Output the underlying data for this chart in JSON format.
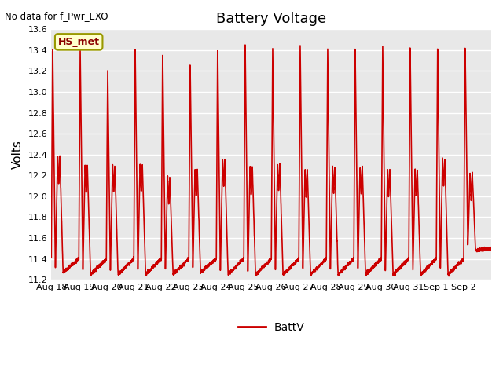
{
  "title": "Battery Voltage",
  "no_data_text": "No data for f_Pwr_EXO",
  "ylabel": "Volts",
  "ylim": [
    11.2,
    13.6
  ],
  "yticks": [
    11.2,
    11.4,
    11.6,
    11.8,
    12.0,
    12.2,
    12.4,
    12.6,
    12.8,
    13.0,
    13.2,
    13.4,
    13.6
  ],
  "line_color": "#cc0000",
  "line_width": 1.2,
  "legend_label": "BattV",
  "hs_met_label": "HS_met",
  "plot_bg_color": "#e8e8e8",
  "fig_bg_color": "#ffffff",
  "grid_color": "#ffffff",
  "x_labels": [
    "Aug 18",
    "Aug 19",
    "Aug 20",
    "Aug 21",
    "Aug 22",
    "Aug 23",
    "Aug 24",
    "Aug 25",
    "Aug 26",
    "Aug 27",
    "Aug 28",
    "Aug 29",
    "Aug 30",
    "Aug 31",
    "Sep 1",
    "Sep 2"
  ],
  "n_days": 16,
  "cycle_peaks": [
    13.4,
    13.4,
    13.2,
    13.4,
    13.35,
    13.25,
    13.4,
    13.46,
    13.4,
    13.45,
    13.41,
    13.41,
    13.42,
    13.42,
    13.42,
    13.42
  ],
  "cycle_mins": [
    11.27,
    11.25,
    11.25,
    11.25,
    11.25,
    11.27,
    11.25,
    11.25,
    11.25,
    11.25,
    11.25,
    11.25,
    11.25,
    11.25,
    11.25,
    11.48
  ],
  "cycle_mids": [
    12.38,
    12.3,
    12.3,
    12.3,
    12.18,
    12.25,
    12.35,
    12.28,
    12.3,
    12.25,
    12.28,
    12.28,
    12.25,
    12.25,
    12.35,
    12.22
  ],
  "cycle_starts": [
    11.4,
    11.4,
    11.4,
    11.4,
    11.4,
    11.4,
    11.4,
    11.4,
    11.4,
    11.4,
    11.4,
    11.4,
    11.4,
    11.4,
    11.4,
    11.5
  ]
}
